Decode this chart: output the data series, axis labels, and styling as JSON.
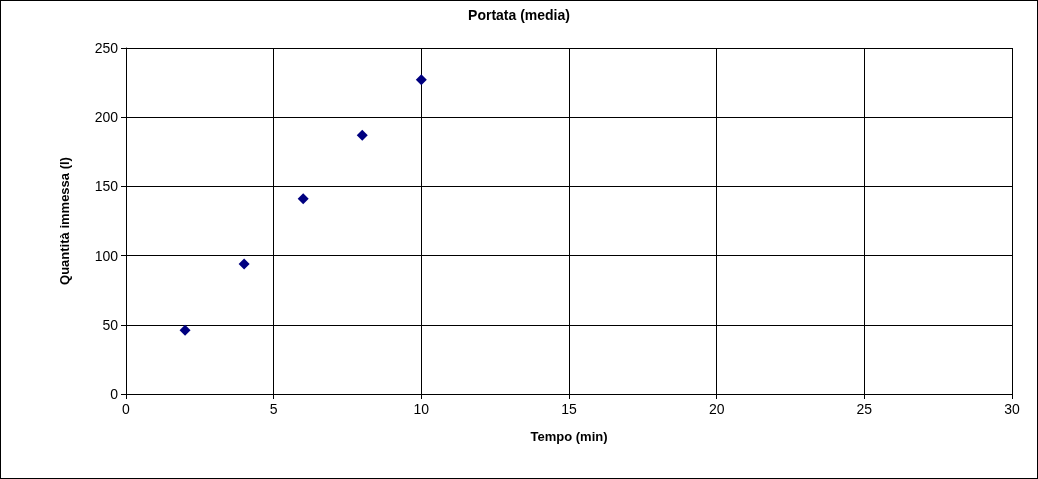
{
  "chart_data": {
    "type": "scatter",
    "title": "Portata (media)",
    "xlabel": "Tempo (min)",
    "ylabel": "Quantità immessa (l)",
    "x": [
      2,
      4,
      6,
      8,
      10
    ],
    "series": [
      {
        "color": "#000080",
        "values": [
          46,
          94,
          141,
          187,
          227
        ]
      }
    ],
    "xlim": [
      0,
      30
    ],
    "xticks": [
      0,
      5,
      10,
      15,
      20,
      25,
      30
    ],
    "ylim": [
      0,
      250
    ],
    "yticks": [
      0,
      50,
      100,
      150,
      200,
      250
    ],
    "grid": true,
    "marker": "diamond"
  }
}
